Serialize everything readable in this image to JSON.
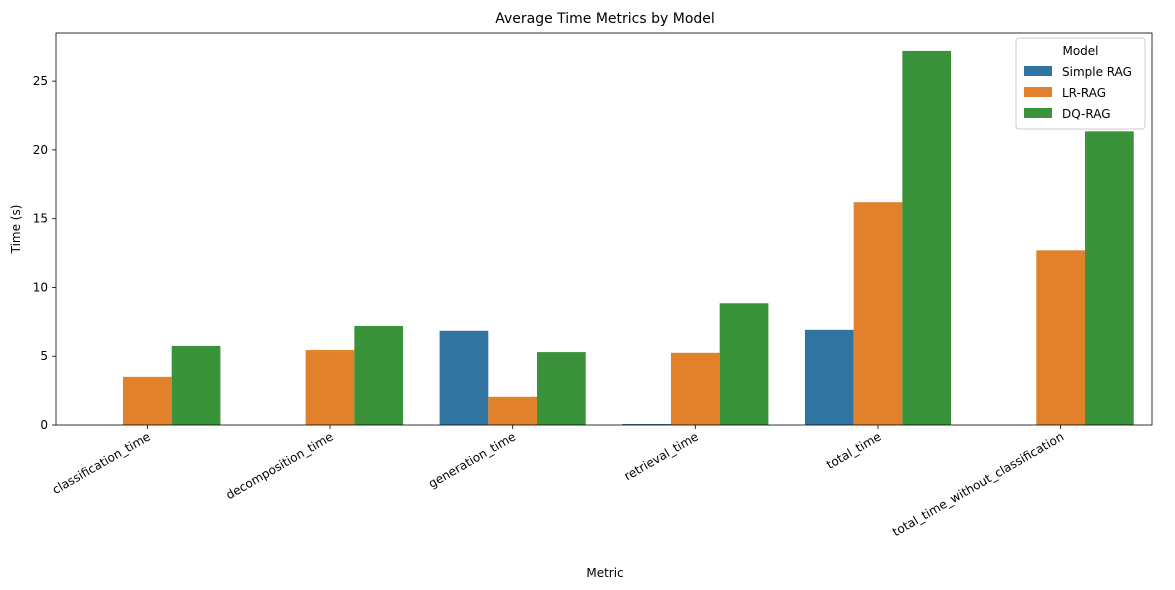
{
  "chart_data": {
    "type": "bar",
    "title": "Average Time Metrics by Model",
    "xlabel": "Metric",
    "ylabel": "Time (s)",
    "ylim": [
      0,
      28.5
    ],
    "yticks": [
      0,
      5,
      10,
      15,
      20,
      25
    ],
    "categories": [
      "classification_time",
      "decomposition_time",
      "generation_time",
      "retrieval_time",
      "total_time",
      "total_time_without_classification"
    ],
    "series": [
      {
        "name": "Simple RAG",
        "color": "#3274a1",
        "values": [
          0,
          0,
          6.85,
          0.07,
          6.92,
          0
        ]
      },
      {
        "name": "LR-RAG",
        "color": "#e1812c",
        "values": [
          3.5,
          5.45,
          2.05,
          5.25,
          16.2,
          12.7
        ]
      },
      {
        "name": "DQ-RAG",
        "color": "#3a923a",
        "values": [
          5.75,
          7.2,
          5.3,
          8.85,
          27.2,
          21.35
        ]
      }
    ],
    "legend": {
      "title": "Model",
      "position": "top-right"
    },
    "grid": false
  }
}
